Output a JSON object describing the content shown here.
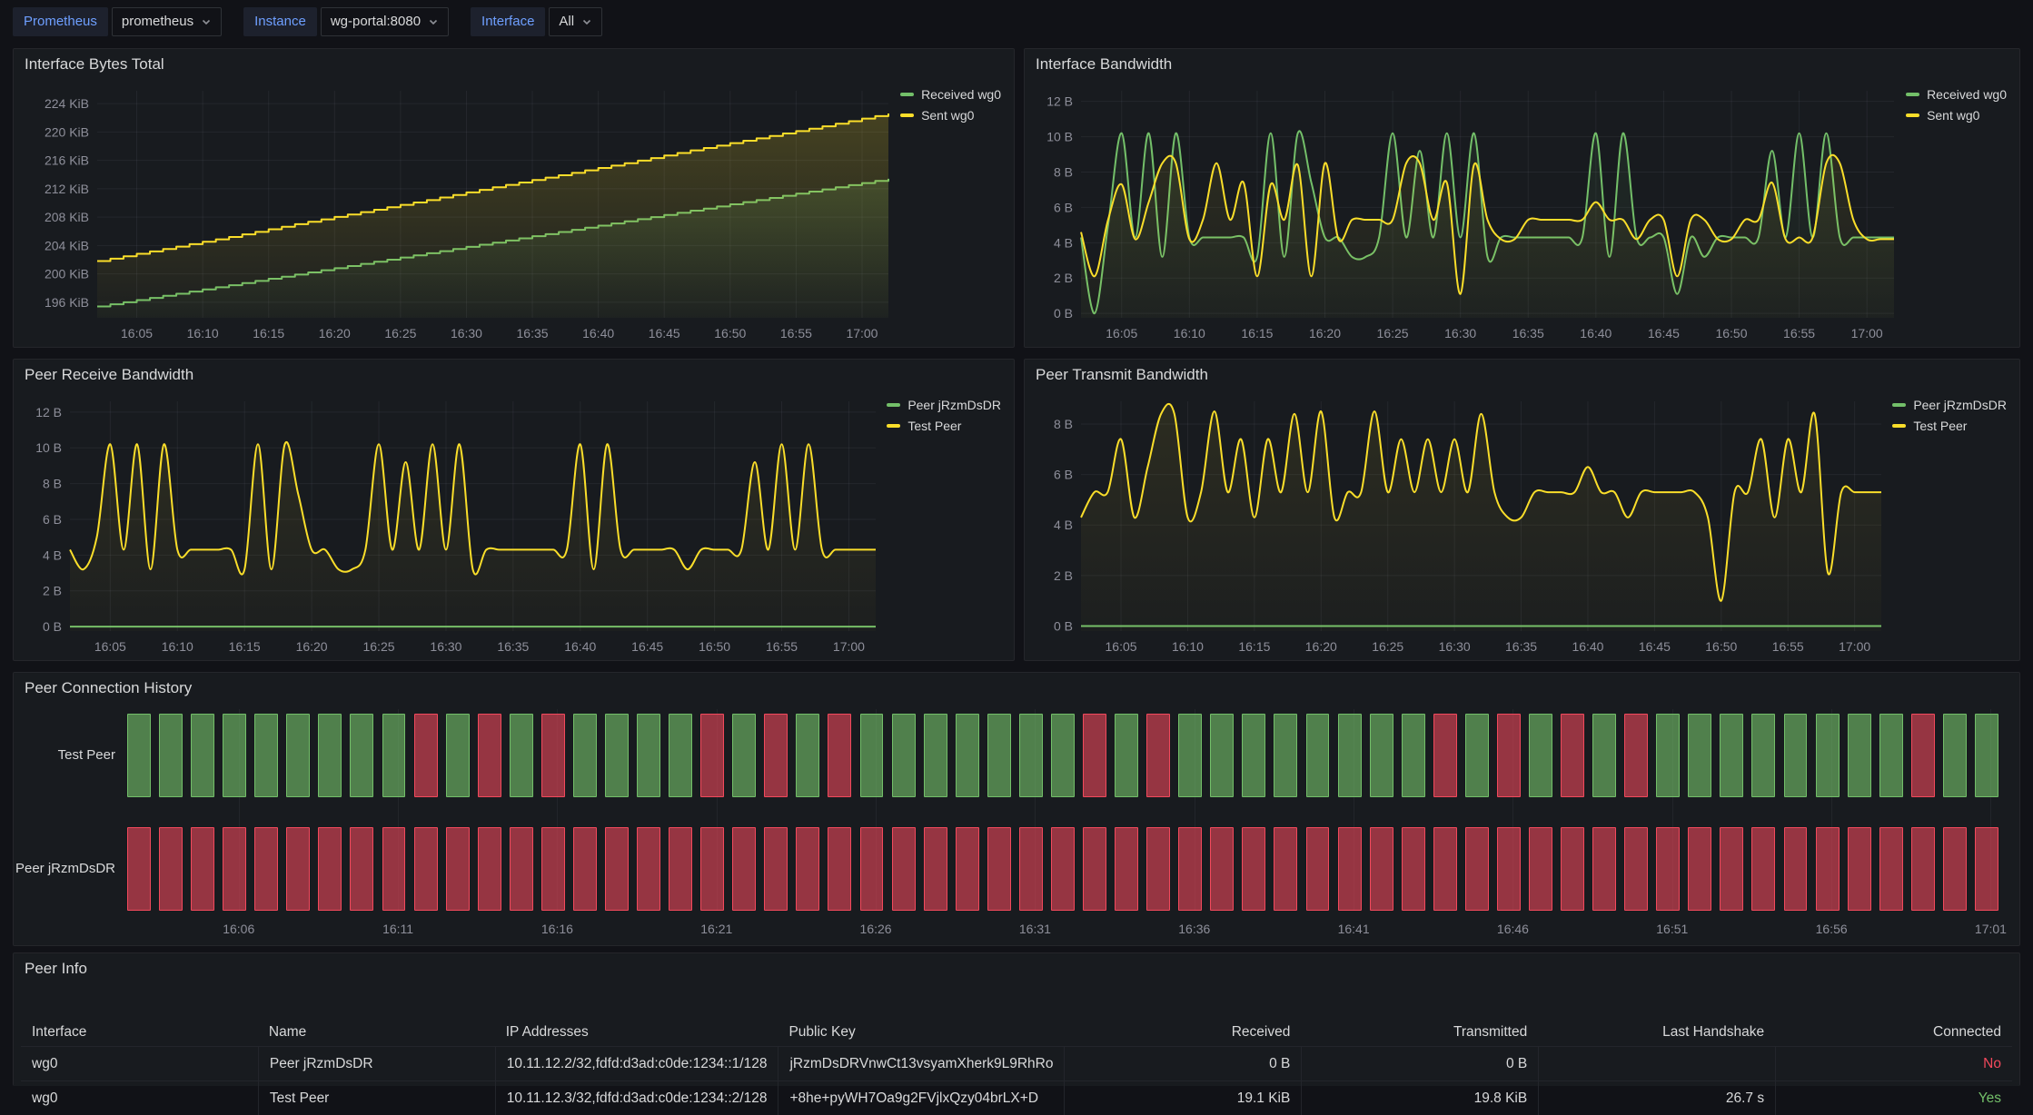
{
  "toolbar": {
    "variables": [
      {
        "label": "Prometheus",
        "value": "prometheus"
      },
      {
        "label": "Instance",
        "value": "wg-portal:8080"
      },
      {
        "label": "Interface",
        "value": "All"
      }
    ]
  },
  "colors": {
    "green": "#73BF69",
    "yellow": "#FADE2A",
    "red": "#F2495C",
    "panel_bg": "#181b1f",
    "page_bg": "#111217",
    "grid": "rgba(204,204,220,0.07)",
    "axis_text": "rgba(204,204,220,0.65)"
  },
  "chart_data": [
    {
      "type": "line",
      "title": "Interface Bytes Total",
      "x_domain": [
        2,
        62
      ],
      "x_tick_minutes": [
        5,
        10,
        15,
        20,
        25,
        30,
        35,
        40,
        45,
        50,
        55,
        60
      ],
      "x_tick_labels": [
        "16:05",
        "16:10",
        "16:15",
        "16:20",
        "16:25",
        "16:30",
        "16:35",
        "16:40",
        "16:45",
        "16:50",
        "16:55",
        "17:00"
      ],
      "ylim": [
        193.8,
        225.8
      ],
      "y_ticks": [
        196,
        200,
        204,
        208,
        212,
        216,
        220,
        224
      ],
      "y_tick_labels": [
        "196 KiB",
        "200 KiB",
        "204 KiB",
        "208 KiB",
        "212 KiB",
        "216 KiB",
        "220 KiB",
        "224 KiB"
      ],
      "left_margin": 92,
      "right_margin": 138,
      "legend_position": "top-right",
      "series": [
        {
          "name": "Received wg0",
          "color": "#73BF69",
          "style": "step",
          "fill_opacity": 0.16,
          "x_start": 2,
          "x_step": 5,
          "values": [
            195.4,
            196.9,
            198.4,
            199.9,
            201.4,
            202.9,
            204.4,
            205.9,
            207.4,
            208.9,
            210.4,
            211.9,
            213.4
          ]
        },
        {
          "name": "Sent wg0",
          "color": "#FADE2A",
          "style": "step",
          "fill_opacity": 0.2,
          "x_start": 2,
          "x_step": 5,
          "values": [
            201.8,
            203.5,
            205.2,
            207.0,
            208.7,
            210.4,
            212.2,
            213.9,
            215.6,
            217.4,
            219.1,
            220.8,
            222.6
          ]
        }
      ]
    },
    {
      "type": "line",
      "title": "Interface Bandwidth",
      "x_domain": [
        2,
        62
      ],
      "x_tick_minutes": [
        5,
        10,
        15,
        20,
        25,
        30,
        35,
        40,
        45,
        50,
        55,
        60
      ],
      "x_tick_labels": [
        "16:05",
        "16:10",
        "16:15",
        "16:20",
        "16:25",
        "16:30",
        "16:35",
        "16:40",
        "16:45",
        "16:50",
        "16:55",
        "17:00"
      ],
      "ylim": [
        -0.25,
        12.6
      ],
      "y_ticks": [
        0,
        2,
        4,
        6,
        8,
        10,
        12
      ],
      "y_tick_labels": [
        "0 B",
        "2 B",
        "4 B",
        "6 B",
        "8 B",
        "10 B",
        "12 B"
      ],
      "left_margin": 62,
      "right_margin": 138,
      "legend_position": "top-right",
      "series": [
        {
          "name": "Received wg0",
          "color": "#73BF69",
          "style": "smooth",
          "fill_opacity": 0.09,
          "x_start": 2,
          "x_step": 1,
          "values": [
            4.3,
            0.0,
            5.0,
            10.2,
            4.3,
            10.2,
            3.2,
            10.2,
            4.3,
            4.3,
            4.3,
            4.3,
            4.3,
            3.2,
            10.2,
            3.2,
            10.2,
            7.4,
            4.3,
            4.3,
            3.2,
            3.2,
            4.3,
            10.2,
            4.3,
            9.2,
            4.3,
            10.2,
            4.3,
            10.2,
            3.2,
            4.3,
            4.3,
            4.3,
            4.3,
            4.3,
            4.3,
            4.3,
            10.2,
            3.2,
            10.2,
            4.3,
            4.3,
            4.3,
            1.1,
            4.3,
            3.2,
            4.3,
            4.3,
            4.3,
            4.3,
            9.2,
            4.3,
            10.2,
            4.3,
            10.2,
            4.3,
            4.3,
            4.3,
            4.3,
            4.3
          ]
        },
        {
          "name": "Sent wg0",
          "color": "#FADE2A",
          "style": "smooth",
          "fill_opacity": 0.09,
          "x_start": 2,
          "x_step": 1,
          "values": [
            4.6,
            2.1,
            5.3,
            7.3,
            4.2,
            6.3,
            8.5,
            8.5,
            4.2,
            5.3,
            8.5,
            5.3,
            7.4,
            2.1,
            7.3,
            5.3,
            8.4,
            2.1,
            8.5,
            4.2,
            5.3,
            5.3,
            5.3,
            5.3,
            8.5,
            8.5,
            5.3,
            7.4,
            1.1,
            8.4,
            5.3,
            4.2,
            4.2,
            5.3,
            5.3,
            5.3,
            5.3,
            5.3,
            6.3,
            5.3,
            5.3,
            4.2,
            5.3,
            5.3,
            2.1,
            5.3,
            5.3,
            4.2,
            4.2,
            5.3,
            5.3,
            7.4,
            4.2,
            4.3,
            4.3,
            8.5,
            8.5,
            5.3,
            4.2,
            4.2,
            4.2
          ]
        }
      ]
    },
    {
      "type": "line",
      "title": "Peer Receive Bandwidth",
      "x_domain": [
        2,
        62
      ],
      "x_tick_minutes": [
        5,
        10,
        15,
        20,
        25,
        30,
        35,
        40,
        45,
        50,
        55,
        60
      ],
      "x_tick_labels": [
        "16:05",
        "16:10",
        "16:15",
        "16:20",
        "16:25",
        "16:30",
        "16:35",
        "16:40",
        "16:45",
        "16:50",
        "16:55",
        "17:00"
      ],
      "ylim": [
        -0.25,
        12.6
      ],
      "y_ticks": [
        0,
        2,
        4,
        6,
        8,
        10,
        12
      ],
      "y_tick_labels": [
        "0 B",
        "2 B",
        "4 B",
        "6 B",
        "8 B",
        "10 B",
        "12 B"
      ],
      "left_margin": 62,
      "right_margin": 152,
      "legend_position": "top-right",
      "series": [
        {
          "name": "Peer jRzmDsDR",
          "color": "#73BF69",
          "style": "smooth",
          "fill_opacity": 0,
          "x_start": 2,
          "x_step": 60,
          "values": [
            0,
            0
          ]
        },
        {
          "name": "Test Peer",
          "color": "#FADE2A",
          "style": "smooth",
          "fill_opacity": 0.09,
          "x_start": 2,
          "x_step": 1,
          "values": [
            4.3,
            3.2,
            5.0,
            10.2,
            4.3,
            10.2,
            3.2,
            10.2,
            4.3,
            4.3,
            4.3,
            4.3,
            4.3,
            3.2,
            10.2,
            3.2,
            10.2,
            7.4,
            4.3,
            4.3,
            3.2,
            3.2,
            4.3,
            10.2,
            4.3,
            9.2,
            4.3,
            10.2,
            4.3,
            10.2,
            3.2,
            4.3,
            4.3,
            4.3,
            4.3,
            4.3,
            4.3,
            4.3,
            10.2,
            3.2,
            10.2,
            4.3,
            4.3,
            4.3,
            4.3,
            4.3,
            3.2,
            4.3,
            4.3,
            4.3,
            4.3,
            9.2,
            4.3,
            10.2,
            4.3,
            10.2,
            4.3,
            4.3,
            4.3,
            4.3,
            4.3
          ]
        }
      ]
    },
    {
      "type": "line",
      "title": "Peer Transmit Bandwidth",
      "x_domain": [
        2,
        62
      ],
      "x_tick_minutes": [
        5,
        10,
        15,
        20,
        25,
        30,
        35,
        40,
        45,
        50,
        55,
        60
      ],
      "x_tick_labels": [
        "16:05",
        "16:10",
        "16:15",
        "16:20",
        "16:25",
        "16:30",
        "16:35",
        "16:40",
        "16:45",
        "16:50",
        "16:55",
        "17:00"
      ],
      "ylim": [
        -0.2,
        8.9
      ],
      "y_ticks": [
        0,
        2,
        4,
        6,
        8
      ],
      "y_tick_labels": [
        "0 B",
        "2 B",
        "4 B",
        "6 B",
        "8 B"
      ],
      "left_margin": 62,
      "right_margin": 152,
      "legend_position": "top-right",
      "series": [
        {
          "name": "Peer jRzmDsDR",
          "color": "#73BF69",
          "style": "smooth",
          "fill_opacity": 0,
          "x_start": 2,
          "x_step": 60,
          "values": [
            0,
            0
          ]
        },
        {
          "name": "Test Peer",
          "color": "#FADE2A",
          "style": "smooth",
          "fill_opacity": 0.09,
          "x_start": 2,
          "x_step": 1,
          "values": [
            4.3,
            5.3,
            5.3,
            7.4,
            4.3,
            6.3,
            8.4,
            8.4,
            4.3,
            5.3,
            8.5,
            5.3,
            7.4,
            4.3,
            7.4,
            5.3,
            8.4,
            5.3,
            8.5,
            4.3,
            5.3,
            5.3,
            8.5,
            5.3,
            7.4,
            5.3,
            7.4,
            5.3,
            7.4,
            5.3,
            8.4,
            5.3,
            4.3,
            4.3,
            5.3,
            5.3,
            5.3,
            5.3,
            6.3,
            5.3,
            5.3,
            4.3,
            5.3,
            5.3,
            5.3,
            5.3,
            5.3,
            4.3,
            1.0,
            5.3,
            5.3,
            7.4,
            4.3,
            7.4,
            5.3,
            8.4,
            2.1,
            5.3,
            5.3,
            5.3,
            5.3
          ]
        }
      ]
    },
    {
      "type": "status_history",
      "title": "Peer Connection History",
      "first_bar_time": "16:03",
      "x_tick_minutes": [
        6,
        11,
        16,
        21,
        26,
        31,
        36,
        41,
        46,
        51,
        56,
        61
      ],
      "x_tick_labels": [
        "16:06",
        "16:11",
        "16:16",
        "16:21",
        "16:26",
        "16:31",
        "16:36",
        "16:41",
        "16:46",
        "16:51",
        "16:56",
        "17:01"
      ],
      "states": {
        "up_color": "#73BF69",
        "down_color": "#F2495C"
      },
      "rows": [
        {
          "name": "Test Peer",
          "values": [
            1,
            1,
            1,
            1,
            1,
            1,
            1,
            1,
            1,
            0,
            1,
            0,
            1,
            0,
            1,
            1,
            1,
            1,
            0,
            1,
            0,
            1,
            0,
            1,
            1,
            1,
            1,
            1,
            1,
            1,
            0,
            1,
            0,
            1,
            1,
            1,
            1,
            1,
            1,
            1,
            1,
            0,
            1,
            0,
            1,
            0,
            1,
            0,
            1,
            1,
            1,
            1,
            1,
            1,
            1,
            1,
            0,
            1,
            1
          ]
        },
        {
          "name": "Peer jRzmDsDR",
          "values": [
            0,
            0,
            0,
            0,
            0,
            0,
            0,
            0,
            0,
            0,
            0,
            0,
            0,
            0,
            0,
            0,
            0,
            0,
            0,
            0,
            0,
            0,
            0,
            0,
            0,
            0,
            0,
            0,
            0,
            0,
            0,
            0,
            0,
            0,
            0,
            0,
            0,
            0,
            0,
            0,
            0,
            0,
            0,
            0,
            0,
            0,
            0,
            0,
            0,
            0,
            0,
            0,
            0,
            0,
            0,
            0,
            0,
            0,
            0
          ]
        }
      ]
    },
    {
      "type": "table",
      "title": "Peer Info",
      "columns": [
        {
          "label": "Interface",
          "align": "left"
        },
        {
          "label": "Name",
          "align": "left"
        },
        {
          "label": "IP Addresses",
          "align": "left"
        },
        {
          "label": "Public Key",
          "align": "left"
        },
        {
          "label": "Received",
          "align": "right"
        },
        {
          "label": "Transmitted",
          "align": "right"
        },
        {
          "label": "Last Handshake",
          "align": "right"
        },
        {
          "label": "Connected",
          "align": "right"
        }
      ],
      "rows": [
        [
          "wg0",
          "Peer jRzmDsDR",
          "10.11.12.2/32,fdfd:d3ad:c0de:1234::1/128",
          "jRzmDsDRVnwCt13vsyamXherk9L9RhRo",
          "0 B",
          "0 B",
          "",
          "No"
        ],
        [
          "wg0",
          "Test Peer",
          "10.11.12.3/32,fdfd:d3ad:c0de:1234::2/128",
          "+8he+pyWH7Oa9g2FVjlxQzy04brLX+D",
          "19.1 KiB",
          "19.8 KiB",
          "26.7 s",
          "Yes"
        ]
      ],
      "connected_colors": {
        "Yes": "#73BF69",
        "No": "#F2495C"
      }
    }
  ]
}
